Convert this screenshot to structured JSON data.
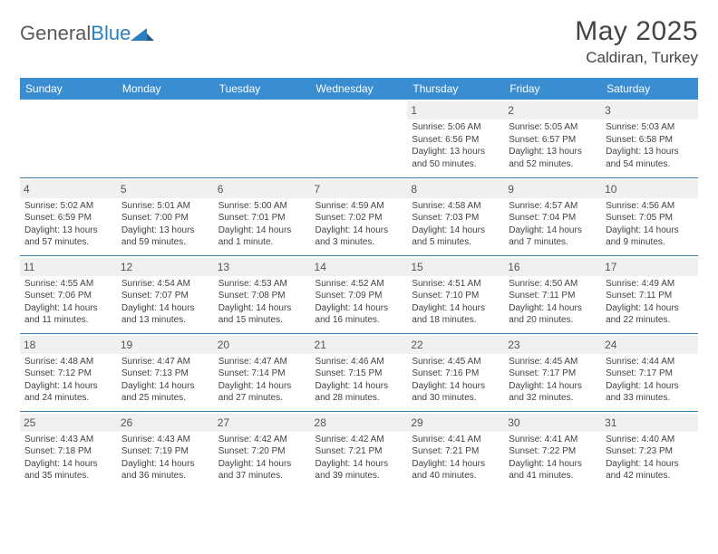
{
  "brand": {
    "name_a": "General",
    "name_b": "Blue"
  },
  "title": "May 2025",
  "location": "Caldiran, Turkey",
  "colors": {
    "header_bg": "#3a8dd0",
    "header_text": "#ffffff",
    "rule": "#3a7db0",
    "daynum_bg": "#eef0f1",
    "body_text": "#424242",
    "title_text": "#444444"
  },
  "dow": [
    "Sunday",
    "Monday",
    "Tuesday",
    "Wednesday",
    "Thursday",
    "Friday",
    "Saturday"
  ],
  "weeks": [
    [
      null,
      null,
      null,
      null,
      {
        "n": "1",
        "sunrise": "5:06 AM",
        "sunset": "6:56 PM",
        "dl": "13 hours and 50 minutes."
      },
      {
        "n": "2",
        "sunrise": "5:05 AM",
        "sunset": "6:57 PM",
        "dl": "13 hours and 52 minutes."
      },
      {
        "n": "3",
        "sunrise": "5:03 AM",
        "sunset": "6:58 PM",
        "dl": "13 hours and 54 minutes."
      }
    ],
    [
      {
        "n": "4",
        "sunrise": "5:02 AM",
        "sunset": "6:59 PM",
        "dl": "13 hours and 57 minutes."
      },
      {
        "n": "5",
        "sunrise": "5:01 AM",
        "sunset": "7:00 PM",
        "dl": "13 hours and 59 minutes."
      },
      {
        "n": "6",
        "sunrise": "5:00 AM",
        "sunset": "7:01 PM",
        "dl": "14 hours and 1 minute."
      },
      {
        "n": "7",
        "sunrise": "4:59 AM",
        "sunset": "7:02 PM",
        "dl": "14 hours and 3 minutes."
      },
      {
        "n": "8",
        "sunrise": "4:58 AM",
        "sunset": "7:03 PM",
        "dl": "14 hours and 5 minutes."
      },
      {
        "n": "9",
        "sunrise": "4:57 AM",
        "sunset": "7:04 PM",
        "dl": "14 hours and 7 minutes."
      },
      {
        "n": "10",
        "sunrise": "4:56 AM",
        "sunset": "7:05 PM",
        "dl": "14 hours and 9 minutes."
      }
    ],
    [
      {
        "n": "11",
        "sunrise": "4:55 AM",
        "sunset": "7:06 PM",
        "dl": "14 hours and 11 minutes."
      },
      {
        "n": "12",
        "sunrise": "4:54 AM",
        "sunset": "7:07 PM",
        "dl": "14 hours and 13 minutes."
      },
      {
        "n": "13",
        "sunrise": "4:53 AM",
        "sunset": "7:08 PM",
        "dl": "14 hours and 15 minutes."
      },
      {
        "n": "14",
        "sunrise": "4:52 AM",
        "sunset": "7:09 PM",
        "dl": "14 hours and 16 minutes."
      },
      {
        "n": "15",
        "sunrise": "4:51 AM",
        "sunset": "7:10 PM",
        "dl": "14 hours and 18 minutes."
      },
      {
        "n": "16",
        "sunrise": "4:50 AM",
        "sunset": "7:11 PM",
        "dl": "14 hours and 20 minutes."
      },
      {
        "n": "17",
        "sunrise": "4:49 AM",
        "sunset": "7:11 PM",
        "dl": "14 hours and 22 minutes."
      }
    ],
    [
      {
        "n": "18",
        "sunrise": "4:48 AM",
        "sunset": "7:12 PM",
        "dl": "14 hours and 24 minutes."
      },
      {
        "n": "19",
        "sunrise": "4:47 AM",
        "sunset": "7:13 PM",
        "dl": "14 hours and 25 minutes."
      },
      {
        "n": "20",
        "sunrise": "4:47 AM",
        "sunset": "7:14 PM",
        "dl": "14 hours and 27 minutes."
      },
      {
        "n": "21",
        "sunrise": "4:46 AM",
        "sunset": "7:15 PM",
        "dl": "14 hours and 28 minutes."
      },
      {
        "n": "22",
        "sunrise": "4:45 AM",
        "sunset": "7:16 PM",
        "dl": "14 hours and 30 minutes."
      },
      {
        "n": "23",
        "sunrise": "4:45 AM",
        "sunset": "7:17 PM",
        "dl": "14 hours and 32 minutes."
      },
      {
        "n": "24",
        "sunrise": "4:44 AM",
        "sunset": "7:17 PM",
        "dl": "14 hours and 33 minutes."
      }
    ],
    [
      {
        "n": "25",
        "sunrise": "4:43 AM",
        "sunset": "7:18 PM",
        "dl": "14 hours and 35 minutes."
      },
      {
        "n": "26",
        "sunrise": "4:43 AM",
        "sunset": "7:19 PM",
        "dl": "14 hours and 36 minutes."
      },
      {
        "n": "27",
        "sunrise": "4:42 AM",
        "sunset": "7:20 PM",
        "dl": "14 hours and 37 minutes."
      },
      {
        "n": "28",
        "sunrise": "4:42 AM",
        "sunset": "7:21 PM",
        "dl": "14 hours and 39 minutes."
      },
      {
        "n": "29",
        "sunrise": "4:41 AM",
        "sunset": "7:21 PM",
        "dl": "14 hours and 40 minutes."
      },
      {
        "n": "30",
        "sunrise": "4:41 AM",
        "sunset": "7:22 PM",
        "dl": "14 hours and 41 minutes."
      },
      {
        "n": "31",
        "sunrise": "4:40 AM",
        "sunset": "7:23 PM",
        "dl": "14 hours and 42 minutes."
      }
    ]
  ],
  "labels": {
    "sunrise": "Sunrise: ",
    "sunset": "Sunset: ",
    "daylight": "Daylight: "
  }
}
